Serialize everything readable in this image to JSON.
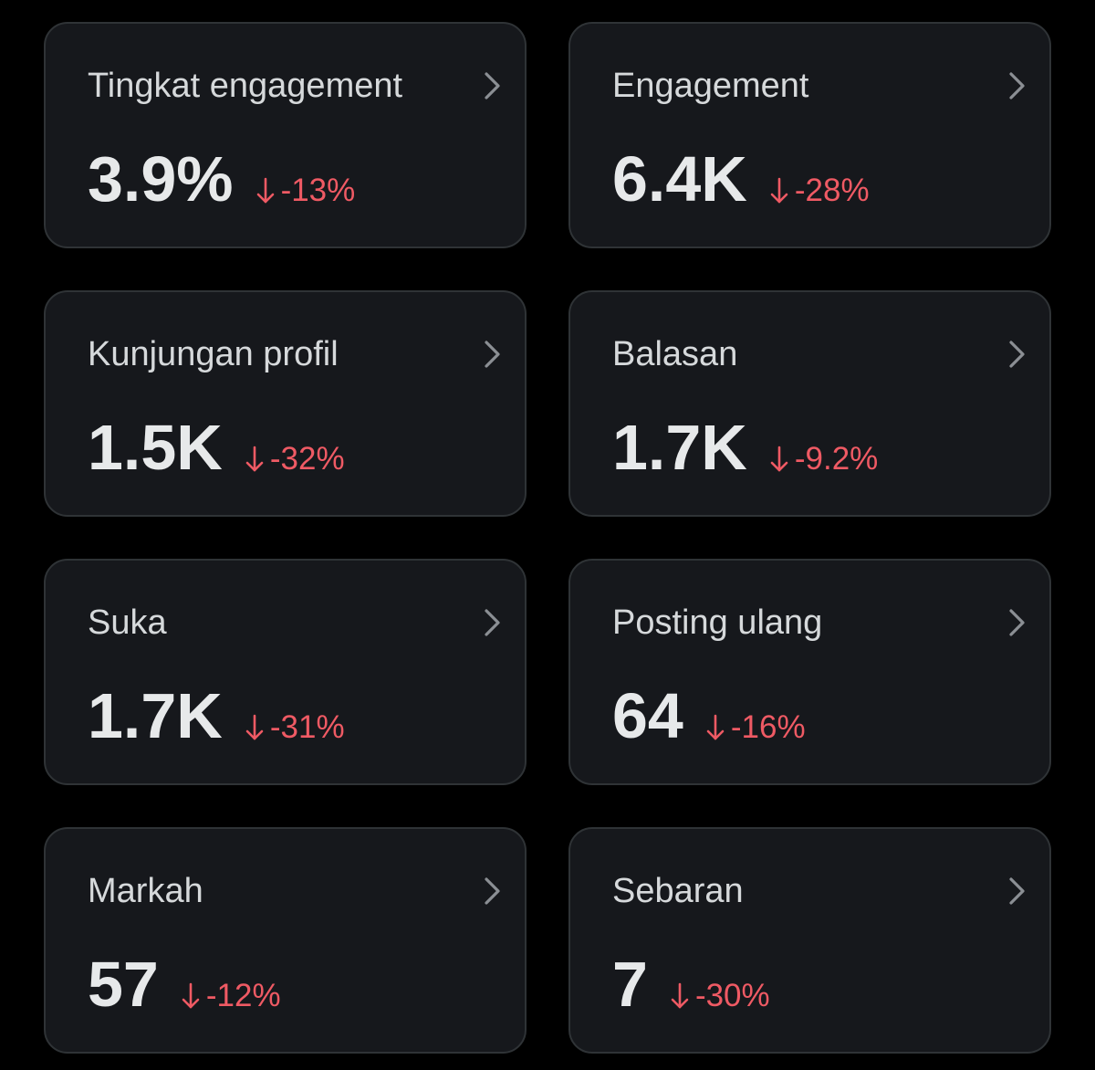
{
  "colors": {
    "background": "#000000",
    "card_background": "#16181c",
    "card_border": "#2f3336",
    "label": "#d6d9db",
    "value": "#e7e9ea",
    "negative_change": "#ef5a64",
    "chevron": "#8b8f94"
  },
  "metrics": [
    {
      "label": "Tingkat engagement",
      "value": "3.9%",
      "change": "-13%",
      "trend_icon": "arrow-down-icon",
      "nav_icon": "chevron-right-icon"
    },
    {
      "label": "Engagement",
      "value": "6.4K",
      "change": "-28%",
      "trend_icon": "arrow-down-icon",
      "nav_icon": "chevron-right-icon"
    },
    {
      "label": "Kunjungan profil",
      "value": "1.5K",
      "change": "-32%",
      "trend_icon": "arrow-down-icon",
      "nav_icon": "chevron-right-icon"
    },
    {
      "label": "Balasan",
      "value": "1.7K",
      "change": "-9.2%",
      "trend_icon": "arrow-down-icon",
      "nav_icon": "chevron-right-icon"
    },
    {
      "label": "Suka",
      "value": "1.7K",
      "change": "-31%",
      "trend_icon": "arrow-down-icon",
      "nav_icon": "chevron-right-icon"
    },
    {
      "label": "Posting ulang",
      "value": "64",
      "change": "-16%",
      "trend_icon": "arrow-down-icon",
      "nav_icon": "chevron-right-icon"
    },
    {
      "label": "Markah",
      "value": "57",
      "change": "-12%",
      "trend_icon": "arrow-down-icon",
      "nav_icon": "chevron-right-icon"
    },
    {
      "label": "Sebaran",
      "value": "7",
      "change": "-30%",
      "trend_icon": "arrow-down-icon",
      "nav_icon": "chevron-right-icon"
    }
  ]
}
